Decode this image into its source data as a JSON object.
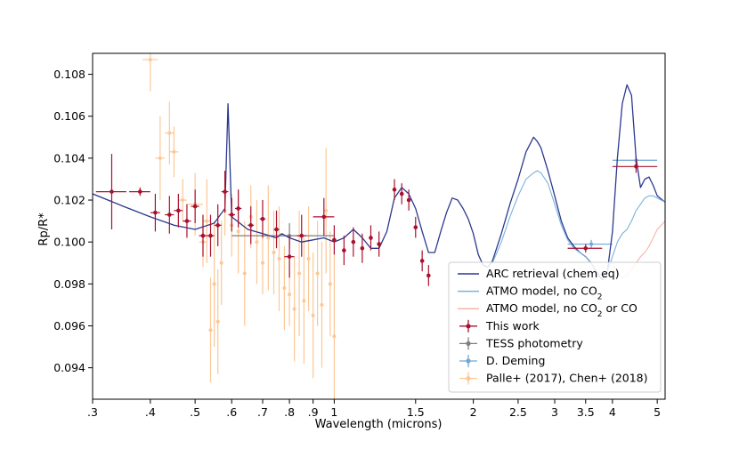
{
  "chart_data": {
    "type": "scatter",
    "title": "",
    "xlabel": "Wavelength (microns)",
    "ylabel": "Rp/R*",
    "xscale": "log",
    "xlim": [
      0.3,
      5.2
    ],
    "ylim": [
      0.0925,
      0.109
    ],
    "x_ticks": [
      0.3,
      0.4,
      0.5,
      0.6,
      0.7,
      0.8,
      0.9,
      1,
      1.5,
      2,
      2.5,
      3,
      3.5,
      4,
      5
    ],
    "x_tick_labels": [
      ".3",
      ".4",
      ".5",
      ".6",
      ".7",
      ".8",
      ".9",
      "1",
      "1.5",
      "2",
      "2.5",
      "3",
      "3.5",
      "4",
      "5"
    ],
    "y_ticks": [
      0.094,
      0.096,
      0.098,
      0.1,
      0.102,
      0.104,
      0.106,
      0.108
    ],
    "y_tick_labels": [
      "0.094",
      "0.096",
      "0.098",
      "0.100",
      "0.102",
      "0.104",
      "0.106",
      "0.108"
    ],
    "legend_position": "lower-right",
    "legend": [
      {
        "label": "ARC retrieval (chem eq)",
        "kind": "line",
        "color": "#2b3990"
      },
      {
        "label": "ATMO model, no CO",
        "sub": "2",
        "tail": "",
        "kind": "line",
        "color": "#7ab3d9"
      },
      {
        "label": "ATMO model, no CO",
        "sub": "2",
        "tail": " or CO",
        "kind": "line",
        "color": "#f5b5a8"
      },
      {
        "label": "This work",
        "kind": "errorbar",
        "color": "#a8102e"
      },
      {
        "label": "TESS photometry",
        "kind": "errorbar",
        "color": "#7f7f7f"
      },
      {
        "label": "D. Deming",
        "kind": "errorbar",
        "color": "#6fa8d6"
      },
      {
        "label": "Palle+ (2017), Chen+ (2018)",
        "kind": "errorbar",
        "color": "#fbc896"
      }
    ],
    "series": [
      {
        "name": "ARC retrieval (chem eq)",
        "kind": "line",
        "color": "#2b3990",
        "x": [
          0.3,
          0.35,
          0.4,
          0.45,
          0.5,
          0.55,
          0.58,
          0.589,
          0.6,
          0.65,
          0.7,
          0.75,
          0.77,
          0.8,
          0.85,
          0.9,
          0.95,
          1.0,
          1.05,
          1.1,
          1.15,
          1.2,
          1.25,
          1.3,
          1.35,
          1.4,
          1.45,
          1.5,
          1.55,
          1.6,
          1.65,
          1.7,
          1.75,
          1.8,
          1.85,
          1.9,
          1.95,
          2.0,
          2.05,
          2.1,
          2.15,
          2.2,
          2.3,
          2.4,
          2.5,
          2.6,
          2.7,
          2.75,
          2.8,
          2.9,
          3.0,
          3.1,
          3.2,
          3.3,
          3.4,
          3.5,
          3.6,
          3.7,
          3.8,
          3.9,
          4.0,
          4.1,
          4.2,
          4.3,
          4.4,
          4.5,
          4.6,
          4.7,
          4.8,
          4.9,
          5.0,
          5.2
        ],
        "y": [
          0.1023,
          0.1017,
          0.1012,
          0.1008,
          0.1006,
          0.1009,
          0.1016,
          0.1066,
          0.1012,
          0.1006,
          0.1004,
          0.1002,
          0.1004,
          0.1002,
          0.1,
          0.1001,
          0.1002,
          0.1,
          0.1002,
          0.1006,
          0.1002,
          0.0997,
          0.0997,
          0.1005,
          0.1021,
          0.1026,
          0.1023,
          0.1016,
          0.1005,
          0.0995,
          0.0995,
          0.1005,
          0.1014,
          0.1021,
          0.102,
          0.1016,
          0.1011,
          0.1004,
          0.0994,
          0.0989,
          0.0988,
          0.0991,
          0.1004,
          0.1018,
          0.103,
          0.1043,
          0.105,
          0.1048,
          0.1045,
          0.1034,
          0.1022,
          0.101,
          0.1002,
          0.0998,
          0.0995,
          0.0993,
          0.099,
          0.0985,
          0.0982,
          0.0986,
          0.1005,
          0.104,
          0.1066,
          0.1075,
          0.107,
          0.104,
          0.1026,
          0.103,
          0.1031,
          0.1027,
          0.1022,
          0.1019
        ]
      },
      {
        "name": "ATMO model, no CO2",
        "kind": "line",
        "color": "#7ab3d9",
        "x": [
          2.2,
          2.3,
          2.4,
          2.5,
          2.6,
          2.7,
          2.75,
          2.8,
          2.9,
          3.0,
          3.1,
          3.2,
          3.3,
          3.4,
          3.5,
          3.6,
          3.7,
          3.8,
          3.9,
          4.0,
          4.1,
          4.2,
          4.3,
          4.4,
          4.5,
          4.6,
          4.7,
          4.8,
          4.9,
          5.0,
          5.2
        ],
        "y": [
          0.099,
          0.1,
          0.1012,
          0.1022,
          0.103,
          0.1033,
          0.1034,
          0.1033,
          0.1028,
          0.1018,
          0.1008,
          0.1001,
          0.0997,
          0.0995,
          0.0993,
          0.099,
          0.0986,
          0.0984,
          0.0986,
          0.0993,
          0.1,
          0.1004,
          0.1006,
          0.101,
          0.1015,
          0.1018,
          0.1021,
          0.1022,
          0.1022,
          0.1021,
          0.1019
        ]
      },
      {
        "name": "ATMO model, no CO2 or CO",
        "kind": "line",
        "color": "#f5b5a8",
        "x": [
          4.0,
          4.1,
          4.2,
          4.3,
          4.4,
          4.5,
          4.6,
          4.7,
          4.8,
          4.9,
          5.0,
          5.1,
          5.2
        ],
        "y": [
          0.099,
          0.0985,
          0.0983,
          0.0984,
          0.0987,
          0.099,
          0.0993,
          0.0995,
          0.0998,
          0.1002,
          0.1006,
          0.1008,
          0.101
        ]
      },
      {
        "name": "This work",
        "kind": "errorbar",
        "color": "#a8102e",
        "x": [
          0.33,
          0.38,
          0.41,
          0.44,
          0.46,
          0.48,
          0.5,
          0.52,
          0.54,
          0.56,
          0.58,
          0.6,
          0.62,
          0.66,
          0.7,
          0.75,
          0.8,
          0.85,
          0.95,
          1.0,
          1.05,
          1.1,
          1.15,
          1.2,
          1.25,
          1.35,
          1.4,
          1.45,
          1.5,
          1.55,
          1.6,
          3.5,
          4.5
        ],
        "y": [
          0.1024,
          0.1024,
          0.1014,
          0.1013,
          0.1015,
          0.101,
          0.1017,
          0.1003,
          0.1003,
          0.1008,
          0.1024,
          0.1013,
          0.1016,
          0.1008,
          0.1011,
          0.1006,
          0.0993,
          0.1003,
          0.1012,
          0.1001,
          0.0996,
          0.1,
          0.0997,
          0.1002,
          0.0999,
          0.1025,
          0.1023,
          0.102,
          0.1007,
          0.0991,
          0.0984,
          0.0997,
          0.1036
        ],
        "yerr": [
          0.0018,
          0.0002,
          0.0009,
          0.0009,
          0.0008,
          0.0008,
          0.0008,
          0.001,
          0.001,
          0.001,
          0.001,
          0.0008,
          0.0009,
          0.0009,
          0.0009,
          0.0009,
          0.001,
          0.001,
          0.0009,
          0.0007,
          0.0007,
          0.0007,
          0.0007,
          0.0006,
          0.0006,
          0.0005,
          0.0005,
          0.0005,
          0.0005,
          0.0005,
          0.0005,
          0.0002,
          0.0003
        ],
        "xerr": [
          0.025,
          0.02,
          0.01,
          0.01,
          0.01,
          0.01,
          0.01,
          0.01,
          0.01,
          0.01,
          0.01,
          0.01,
          0.01,
          0.01,
          0.01,
          0.01,
          0.02,
          0.02,
          0.05,
          0.01,
          0.01,
          0.01,
          0.01,
          0.01,
          0.01,
          0.01,
          0.01,
          0.01,
          0.01,
          0.01,
          0.01,
          0.3,
          0.5
        ]
      },
      {
        "name": "TESS photometry",
        "kind": "errorbar",
        "color": "#7f7f7f",
        "x": [
          0.8
        ],
        "y": [
          0.1003
        ],
        "yerr": [
          0.0006
        ],
        "xerr": [
          0.2
        ]
      },
      {
        "name": "D. Deming",
        "kind": "errorbar",
        "color": "#6fa8d6",
        "x": [
          3.6,
          4.5
        ],
        "y": [
          0.0999,
          0.1039
        ],
        "yerr": [
          0.0002,
          0.0002
        ],
        "xerr": [
          0.4,
          0.5
        ]
      },
      {
        "name": "Palle+ (2017), Chen+ (2018)",
        "kind": "errorbar",
        "color": "#fbc896",
        "x": [
          0.4,
          0.42,
          0.44,
          0.45,
          0.47,
          0.5,
          0.52,
          0.53,
          0.54,
          0.55,
          0.56,
          0.57,
          0.58,
          0.6,
          0.62,
          0.64,
          0.66,
          0.68,
          0.7,
          0.72,
          0.74,
          0.76,
          0.78,
          0.8,
          0.82,
          0.84,
          0.86,
          0.88,
          0.9,
          0.92,
          0.94,
          0.96,
          0.98,
          1.0
        ],
        "y": [
          0.1087,
          0.104,
          0.1052,
          0.1043,
          0.102,
          0.1018,
          0.1,
          0.101,
          0.0958,
          0.098,
          0.0962,
          0.099,
          0.1015,
          0.1008,
          0.1005,
          0.0985,
          0.1012,
          0.1,
          0.099,
          0.1002,
          0.0995,
          0.0992,
          0.0978,
          0.0975,
          0.0968,
          0.0985,
          0.0972,
          0.0992,
          0.0965,
          0.0985,
          0.097,
          0.1015,
          0.098,
          0.0955
        ],
        "yerr": [
          0.0015,
          0.002,
          0.0015,
          0.0012,
          0.001,
          0.0015,
          0.0012,
          0.002,
          0.0025,
          0.003,
          0.0025,
          0.002,
          0.0012,
          0.0015,
          0.002,
          0.0025,
          0.0015,
          0.002,
          0.0015,
          0.0025,
          0.002,
          0.0025,
          0.002,
          0.0015,
          0.0025,
          0.003,
          0.003,
          0.0025,
          0.003,
          0.0025,
          0.003,
          0.003,
          0.0025,
          0.004
        ],
        "xerr": [
          0.015,
          0.01,
          0.01,
          0.01,
          0.01,
          0.02,
          0.01,
          0.01,
          0.005,
          0.005,
          0.005,
          0.005,
          0.005,
          0.005,
          0.005,
          0.005,
          0.005,
          0.005,
          0.005,
          0.005,
          0.005,
          0.005,
          0.005,
          0.005,
          0.005,
          0.005,
          0.005,
          0.005,
          0.005,
          0.005,
          0.005,
          0.005,
          0.005,
          0.005
        ]
      }
    ]
  }
}
